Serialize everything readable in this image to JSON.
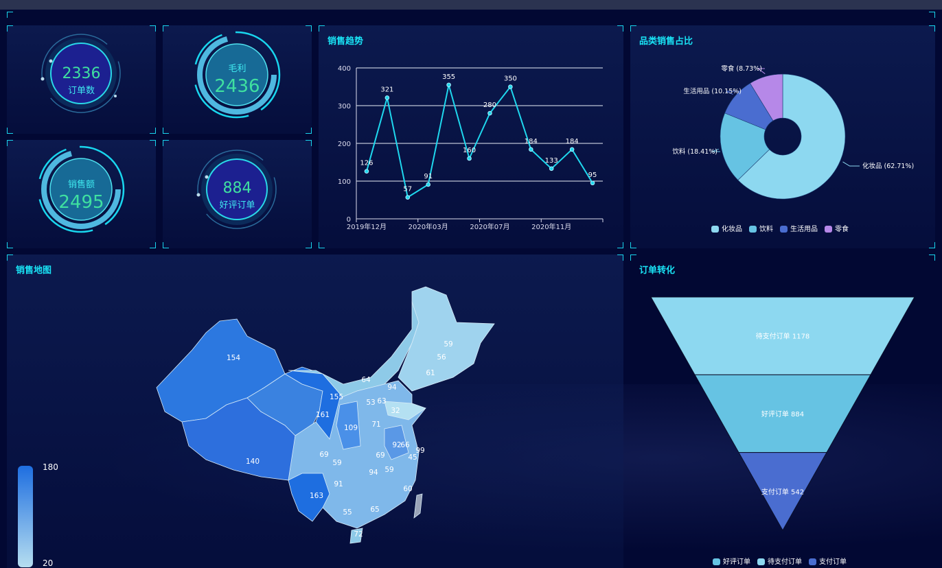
{
  "kpis": [
    {
      "value": "2336",
      "label": "订单数"
    },
    {
      "value": "2436",
      "label": "毛利"
    },
    {
      "value": "2495",
      "label": "销售额"
    },
    {
      "value": "884",
      "label": "好评订单"
    }
  ],
  "trend": {
    "title": "销售趋势"
  },
  "category": {
    "title": "品类销售占比"
  },
  "map": {
    "title": "销售地图",
    "visual_max": "180",
    "visual_min": "20",
    "regions": [
      {
        "name": "新疆",
        "value": 154
      },
      {
        "name": "西藏",
        "value": 140
      },
      {
        "name": "甘肃",
        "value": 161
      },
      {
        "name": "宁夏",
        "value": 155
      },
      {
        "name": "陕西",
        "value": 109
      },
      {
        "name": "四川",
        "value": 69
      },
      {
        "name": "重庆",
        "value": 59
      },
      {
        "name": "贵州",
        "value": 91
      },
      {
        "name": "云南",
        "value": 163
      },
      {
        "name": "广西",
        "value": 55
      },
      {
        "name": "广东",
        "value": 65
      },
      {
        "name": "湖南",
        "value": 94
      },
      {
        "name": "江西",
        "value": 59
      },
      {
        "name": "福建",
        "value": 60
      },
      {
        "name": "湖北",
        "value": 69
      },
      {
        "name": "安徽",
        "value": 92
      },
      {
        "name": "江苏",
        "value": 66
      },
      {
        "name": "上海",
        "value": 99
      },
      {
        "name": "浙江",
        "value": 45
      },
      {
        "name": "河南",
        "value": 71
      },
      {
        "name": "山东",
        "value": 32
      },
      {
        "name": "山西",
        "value": 53
      },
      {
        "name": "河北",
        "value": 63
      },
      {
        "name": "北京",
        "value": 94
      },
      {
        "name": "内蒙古",
        "value": 64
      },
      {
        "name": "辽宁",
        "value": 61
      },
      {
        "name": "吉林",
        "value": 56
      },
      {
        "name": "黑龙江",
        "value": 59
      },
      {
        "name": "海南",
        "value": 72
      }
    ]
  },
  "funnel": {
    "title": "订单转化"
  },
  "chart_data": [
    {
      "type": "line",
      "title": "销售趋势",
      "values": [
        126,
        321,
        57,
        91,
        355,
        160,
        280,
        350,
        184,
        133,
        184,
        95
      ],
      "x_tick_labels": [
        "2019年12月",
        "2020年03月",
        "2020年07月",
        "2020年11月"
      ],
      "y_ticks": [
        "0",
        "100",
        "200",
        "300",
        "400"
      ],
      "ylim": [
        0,
        400
      ],
      "grid": true,
      "color": "#1fd8ee"
    },
    {
      "type": "pie",
      "title": "品类销售占比",
      "slices": [
        {
          "name": "化妆品",
          "value": 62.71,
          "label": "化妆品 (62.71%)",
          "color": "#8dd8f0"
        },
        {
          "name": "饮料",
          "value": 18.41,
          "label": "饮料 (18.41%)",
          "color": "#66c3e3"
        },
        {
          "name": "生活用品",
          "value": 10.15,
          "label": "生活用品 (10.15%)",
          "color": "#4a6dd0"
        },
        {
          "name": "零食",
          "value": 8.73,
          "label": "零食 (8.73%)",
          "color": "#b688e8"
        }
      ],
      "legend": "bottom"
    },
    {
      "type": "funnel",
      "title": "订单转化",
      "stages": [
        {
          "name": "待支付订单",
          "value": 1178,
          "label": "待支付订单 1178",
          "color": "#8dd8f0"
        },
        {
          "name": "好评订单",
          "value": 884,
          "label": "好评订单 884",
          "color": "#66c3e3"
        },
        {
          "name": "支付订单",
          "value": 542,
          "label": "支付订单 542",
          "color": "#4a6dd0"
        }
      ],
      "legend_order": [
        {
          "name": "好评订单",
          "color": "#66c3e3"
        },
        {
          "name": "待支付订单",
          "color": "#8dd8f0"
        },
        {
          "name": "支付订单",
          "color": "#4a6dd0"
        }
      ],
      "legend": "bottom"
    }
  ]
}
